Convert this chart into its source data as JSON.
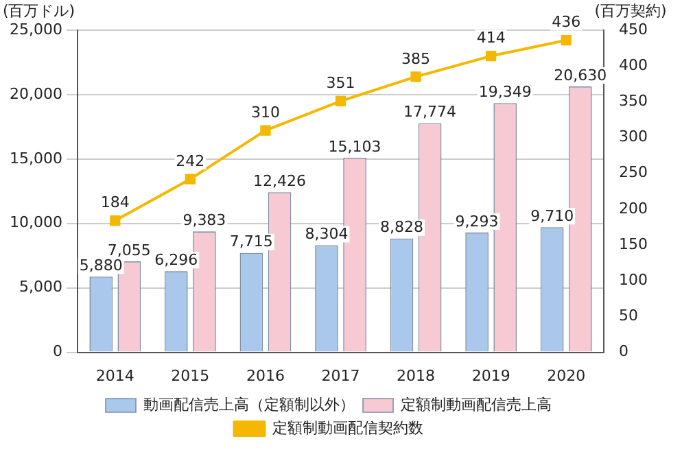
{
  "chart_data": {
    "type": "bar",
    "ylabel": "(百万ドル)",
    "y2label": "(百万契約)",
    "categories": [
      "2014",
      "2015",
      "2016",
      "2017",
      "2018",
      "2019",
      "2020"
    ],
    "series": [
      {
        "name": "動画配信売上高（定額制以外）",
        "color": "#a9c8ec",
        "values": [
          5880,
          6296,
          7715,
          8304,
          8828,
          9293,
          9710
        ],
        "value_labels": [
          "5,880",
          "6,296",
          "7,715",
          "8,304",
          "8,828",
          "9,293",
          "9,710"
        ]
      },
      {
        "name": "定額制動画配信売上高",
        "color": "#f6c9d3",
        "values": [
          7055,
          9383,
          12426,
          15103,
          17774,
          19349,
          20630
        ],
        "value_labels": [
          "7,055",
          "9,383",
          "12,426",
          "15,103",
          "17,774",
          "19,349",
          "20,630"
        ]
      },
      {
        "name": "定額制動画配信契約数",
        "type": "line",
        "axis": "y2",
        "color": "#f5b800",
        "values": [
          184,
          242,
          310,
          351,
          385,
          414,
          436
        ],
        "value_labels": [
          "184",
          "242",
          "310",
          "351",
          "385",
          "414",
          "436"
        ]
      }
    ],
    "ylim": [
      0,
      25000
    ],
    "yticks": [
      0,
      {
        "value": 5000,
        "label": "5,000"
      },
      {
        "value": 10000,
        "label": "10,000"
      },
      {
        "value": 15000,
        "label": "15,000"
      },
      {
        "value": 20000,
        "label": "20,000"
      },
      {
        "value": 25000,
        "label": "25,000"
      }
    ],
    "y2lim": [
      0,
      450
    ],
    "y2ticks": [
      0,
      50,
      100,
      150,
      200,
      250,
      300,
      350,
      400,
      450
    ],
    "grid": "y",
    "legend": "bottom",
    "marker": "square"
  }
}
